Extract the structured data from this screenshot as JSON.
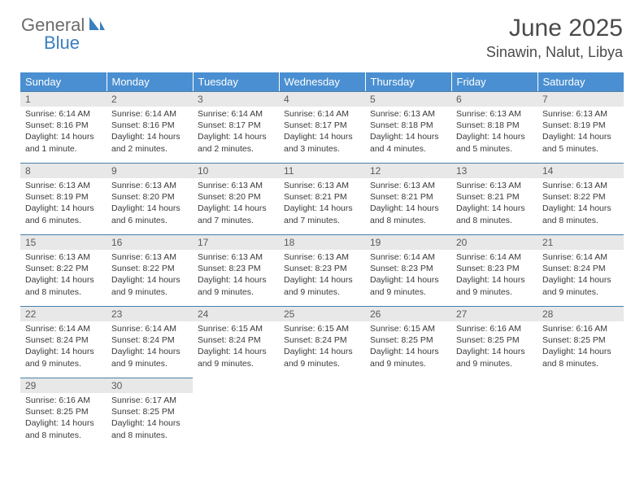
{
  "logo": {
    "general": "General",
    "blue": "Blue"
  },
  "title": "June 2025",
  "location": "Sinawin, Nalut, Libya",
  "colors": {
    "header_bg": "#4a8fd1",
    "header_text": "#ffffff",
    "daynum_bg": "#e8e8e8",
    "daynum_border": "#4a7fa8",
    "logo_gray": "#6b6b6b",
    "logo_blue": "#3a7fbf",
    "body_text": "#3a3a3a"
  },
  "weekdays": [
    "Sunday",
    "Monday",
    "Tuesday",
    "Wednesday",
    "Thursday",
    "Friday",
    "Saturday"
  ],
  "weeks": [
    [
      {
        "n": "1",
        "sr": "6:14 AM",
        "ss": "8:16 PM",
        "dl": "14 hours and 1 minute."
      },
      {
        "n": "2",
        "sr": "6:14 AM",
        "ss": "8:16 PM",
        "dl": "14 hours and 2 minutes."
      },
      {
        "n": "3",
        "sr": "6:14 AM",
        "ss": "8:17 PM",
        "dl": "14 hours and 2 minutes."
      },
      {
        "n": "4",
        "sr": "6:14 AM",
        "ss": "8:17 PM",
        "dl": "14 hours and 3 minutes."
      },
      {
        "n": "5",
        "sr": "6:13 AM",
        "ss": "8:18 PM",
        "dl": "14 hours and 4 minutes."
      },
      {
        "n": "6",
        "sr": "6:13 AM",
        "ss": "8:18 PM",
        "dl": "14 hours and 5 minutes."
      },
      {
        "n": "7",
        "sr": "6:13 AM",
        "ss": "8:19 PM",
        "dl": "14 hours and 5 minutes."
      }
    ],
    [
      {
        "n": "8",
        "sr": "6:13 AM",
        "ss": "8:19 PM",
        "dl": "14 hours and 6 minutes."
      },
      {
        "n": "9",
        "sr": "6:13 AM",
        "ss": "8:20 PM",
        "dl": "14 hours and 6 minutes."
      },
      {
        "n": "10",
        "sr": "6:13 AM",
        "ss": "8:20 PM",
        "dl": "14 hours and 7 minutes."
      },
      {
        "n": "11",
        "sr": "6:13 AM",
        "ss": "8:21 PM",
        "dl": "14 hours and 7 minutes."
      },
      {
        "n": "12",
        "sr": "6:13 AM",
        "ss": "8:21 PM",
        "dl": "14 hours and 8 minutes."
      },
      {
        "n": "13",
        "sr": "6:13 AM",
        "ss": "8:21 PM",
        "dl": "14 hours and 8 minutes."
      },
      {
        "n": "14",
        "sr": "6:13 AM",
        "ss": "8:22 PM",
        "dl": "14 hours and 8 minutes."
      }
    ],
    [
      {
        "n": "15",
        "sr": "6:13 AM",
        "ss": "8:22 PM",
        "dl": "14 hours and 8 minutes."
      },
      {
        "n": "16",
        "sr": "6:13 AM",
        "ss": "8:22 PM",
        "dl": "14 hours and 9 minutes."
      },
      {
        "n": "17",
        "sr": "6:13 AM",
        "ss": "8:23 PM",
        "dl": "14 hours and 9 minutes."
      },
      {
        "n": "18",
        "sr": "6:13 AM",
        "ss": "8:23 PM",
        "dl": "14 hours and 9 minutes."
      },
      {
        "n": "19",
        "sr": "6:14 AM",
        "ss": "8:23 PM",
        "dl": "14 hours and 9 minutes."
      },
      {
        "n": "20",
        "sr": "6:14 AM",
        "ss": "8:23 PM",
        "dl": "14 hours and 9 minutes."
      },
      {
        "n": "21",
        "sr": "6:14 AM",
        "ss": "8:24 PM",
        "dl": "14 hours and 9 minutes."
      }
    ],
    [
      {
        "n": "22",
        "sr": "6:14 AM",
        "ss": "8:24 PM",
        "dl": "14 hours and 9 minutes."
      },
      {
        "n": "23",
        "sr": "6:14 AM",
        "ss": "8:24 PM",
        "dl": "14 hours and 9 minutes."
      },
      {
        "n": "24",
        "sr": "6:15 AM",
        "ss": "8:24 PM",
        "dl": "14 hours and 9 minutes."
      },
      {
        "n": "25",
        "sr": "6:15 AM",
        "ss": "8:24 PM",
        "dl": "14 hours and 9 minutes."
      },
      {
        "n": "26",
        "sr": "6:15 AM",
        "ss": "8:25 PM",
        "dl": "14 hours and 9 minutes."
      },
      {
        "n": "27",
        "sr": "6:16 AM",
        "ss": "8:25 PM",
        "dl": "14 hours and 9 minutes."
      },
      {
        "n": "28",
        "sr": "6:16 AM",
        "ss": "8:25 PM",
        "dl": "14 hours and 8 minutes."
      }
    ],
    [
      {
        "n": "29",
        "sr": "6:16 AM",
        "ss": "8:25 PM",
        "dl": "14 hours and 8 minutes."
      },
      {
        "n": "30",
        "sr": "6:17 AM",
        "ss": "8:25 PM",
        "dl": "14 hours and 8 minutes."
      },
      null,
      null,
      null,
      null,
      null
    ]
  ],
  "labels": {
    "sunrise": "Sunrise:",
    "sunset": "Sunset:",
    "daylight": "Daylight:"
  }
}
